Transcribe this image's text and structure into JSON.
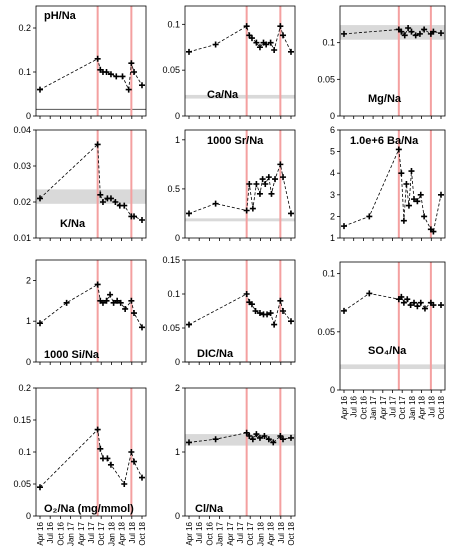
{
  "x_tick_labels": [
    "Apr 16",
    "Jul 16",
    "Oct 16",
    "Jan 17",
    "Apr 17",
    "Jul 17",
    "Oct 17",
    "Jan 18",
    "Apr 18",
    "Jul 18",
    "Oct 18"
  ],
  "event_line_color": "#f4a0a0",
  "band_color": "#d9d9d9",
  "chart_data": [
    {
      "type": "scatter",
      "title": "pH/Na",
      "ylim": [
        0,
        0.25
      ],
      "yticks": [
        0,
        0.1,
        0.2
      ],
      "ytick_labels": [
        "0",
        "0.1",
        "0.2"
      ],
      "x": [
        0,
        6.5,
        6.8,
        7.1,
        7.5,
        8,
        8.6,
        9.3,
        10,
        10.3,
        10.6,
        11.5
      ],
      "y": [
        0.06,
        0.13,
        0.105,
        0.1,
        0.1,
        0.095,
        0.09,
        0.09,
        0.06,
        0.12,
        0.1,
        0.07
      ],
      "hline": 0.015,
      "band": null,
      "events": [
        6.5,
        10.3
      ]
    },
    {
      "type": "scatter",
      "title": "Ca/Na",
      "ylim": [
        0,
        0.12
      ],
      "yticks": [
        0,
        0.05,
        0.1
      ],
      "ytick_labels": [
        "0",
        "0.05",
        "0.1"
      ],
      "x": [
        0,
        3,
        6.5,
        6.8,
        7.1,
        7.6,
        8,
        8.4,
        8.7,
        9.2,
        9.6,
        10.3,
        10.6,
        11.5
      ],
      "y": [
        0.07,
        0.078,
        0.098,
        0.088,
        0.085,
        0.08,
        0.075,
        0.08,
        0.078,
        0.08,
        0.072,
        0.098,
        0.088,
        0.07
      ],
      "hline": null,
      "band": [
        0.019,
        0.023
      ],
      "events": [
        6.5,
        10.3
      ]
    },
    {
      "type": "scatter",
      "title": "Mg/Na",
      "ylim": [
        0,
        0.15
      ],
      "yticks": [
        0,
        0.05,
        0.1
      ],
      "ytick_labels": [
        "0",
        "0.05",
        "0.1"
      ],
      "x": [
        0,
        6.5,
        6.8,
        7.2,
        7.6,
        8,
        8.5,
        9,
        9.5,
        10.3,
        10.6,
        11.5
      ],
      "y": [
        0.112,
        0.118,
        0.115,
        0.11,
        0.12,
        0.115,
        0.11,
        0.112,
        0.118,
        0.112,
        0.115,
        0.113
      ],
      "hline": null,
      "band": [
        0.104,
        0.124
      ],
      "events": [
        6.5,
        10.3
      ]
    },
    {
      "type": "scatter",
      "title": "K/Na",
      "ylim": [
        0.01,
        0.04
      ],
      "yticks": [
        0.01,
        0.02,
        0.03,
        0.04
      ],
      "ytick_labels": [
        "0.01",
        "0.02",
        "0.03",
        "0.04"
      ],
      "x": [
        0,
        6.5,
        6.8,
        7.1,
        7.6,
        8,
        8.5,
        9,
        9.5,
        10.3,
        10.6,
        11.5
      ],
      "y": [
        0.021,
        0.036,
        0.022,
        0.02,
        0.021,
        0.021,
        0.02,
        0.019,
        0.019,
        0.016,
        0.016,
        0.015
      ],
      "hline": null,
      "band": [
        0.0195,
        0.0235
      ],
      "events": [
        6.5,
        10.3
      ]
    },
    {
      "type": "scatter",
      "title": "1000 Sr/Na",
      "ylim": [
        0,
        1.1
      ],
      "yticks": [
        0,
        0.5,
        1
      ],
      "ytick_labels": [
        "0",
        "0.5",
        "1"
      ],
      "x": [
        0,
        3,
        6.5,
        6.8,
        7.2,
        7.6,
        8,
        8.3,
        8.6,
        9,
        9.3,
        9.7,
        10.3,
        10.6,
        11.5
      ],
      "y": [
        0.25,
        0.35,
        0.28,
        0.55,
        0.3,
        0.55,
        0.45,
        0.6,
        0.55,
        0.62,
        0.45,
        0.6,
        0.75,
        0.62,
        0.25
      ],
      "hline": null,
      "band": [
        0.17,
        0.2
      ],
      "events": [
        6.5,
        10.3
      ]
    },
    {
      "type": "scatter",
      "title": "1.0e+6 Ba/Na",
      "ylim": [
        1,
        6
      ],
      "yticks": [
        1,
        2,
        3,
        4,
        5,
        6
      ],
      "ytick_labels": [
        "1",
        "2",
        "3",
        "4",
        "5",
        "6"
      ],
      "x": [
        0,
        3,
        6.5,
        6.8,
        7.1,
        7.4,
        7.7,
        8,
        8.3,
        8.7,
        9.1,
        9.5,
        10.3,
        10.6,
        11.5
      ],
      "y": [
        1.55,
        2,
        5.1,
        4,
        1.8,
        3.5,
        2.5,
        4.1,
        2.8,
        2.7,
        3,
        2,
        1.4,
        1.3,
        3
      ],
      "hline": null,
      "band": null,
      "events": [
        6.5,
        10.3
      ]
    },
    {
      "type": "scatter",
      "title": "1000 Si/Na",
      "ylim": [
        0,
        2.5
      ],
      "yticks": [
        0,
        1,
        2
      ],
      "ytick_labels": [
        "0",
        "1",
        "2"
      ],
      "x": [
        0,
        3,
        6.5,
        6.8,
        7.1,
        7.5,
        7.9,
        8.3,
        8.7,
        9.1,
        9.6,
        10.3,
        10.6,
        11.5
      ],
      "y": [
        0.95,
        1.45,
        1.9,
        1.5,
        1.45,
        1.5,
        1.65,
        1.45,
        1.5,
        1.45,
        1.3,
        1.5,
        1.2,
        0.85
      ],
      "hline": null,
      "band": null,
      "events": [
        6.5,
        10.3
      ]
    },
    {
      "type": "scatter",
      "title": "DIC/Na",
      "ylim": [
        0,
        0.15
      ],
      "yticks": [
        0,
        0.05,
        0.1,
        0.15
      ],
      "ytick_labels": [
        "0",
        "0.05",
        "0.1",
        "0.15"
      ],
      "x": [
        0,
        6.5,
        6.8,
        7.1,
        7.5,
        8,
        8.4,
        8.8,
        9.2,
        9.6,
        10.3,
        10.6,
        11.5
      ],
      "y": [
        0.055,
        0.1,
        0.088,
        0.085,
        0.075,
        0.072,
        0.07,
        0.07,
        0.072,
        0.055,
        0.09,
        0.075,
        0.06
      ],
      "hline": 0,
      "band": null,
      "events": [
        6.5,
        10.3
      ]
    },
    {
      "type": "scatter",
      "title": "SO₄/Na",
      "ylim": [
        0,
        0.11
      ],
      "yticks": [
        0,
        0.05,
        0.1
      ],
      "ytick_labels": [
        "0",
        "0.05",
        "0.1"
      ],
      "x": [
        0,
        3,
        6.5,
        6.8,
        7.1,
        7.5,
        7.9,
        8.3,
        8.7,
        9.1,
        9.6,
        10.3,
        10.6,
        11.5
      ],
      "y": [
        0.068,
        0.083,
        0.078,
        0.08,
        0.075,
        0.078,
        0.073,
        0.075,
        0.072,
        0.075,
        0.07,
        0.075,
        0.073,
        0.073
      ],
      "hline": null,
      "band": [
        0.018,
        0.022
      ],
      "events": [
        6.5,
        10.3
      ]
    },
    {
      "type": "scatter",
      "title": "O₂/Na (mg/mmol)",
      "ylim": [
        0,
        0.2
      ],
      "yticks": [
        0,
        0.05,
        0.1,
        0.15,
        0.2
      ],
      "ytick_labels": [
        "0",
        "0.05",
        "0.1",
        "0.15",
        "0.2"
      ],
      "x": [
        0,
        6.5,
        6.8,
        7.1,
        7.6,
        8,
        9.5,
        10.3,
        10.6,
        11.5
      ],
      "y": [
        0.045,
        0.135,
        0.105,
        0.09,
        0.09,
        0.08,
        0.05,
        0.1,
        0.085,
        0.06
      ],
      "hline": null,
      "band": null,
      "events": [
        6.5,
        10.3
      ]
    },
    {
      "type": "scatter",
      "title": "Cl/Na",
      "ylim": [
        0,
        2
      ],
      "yticks": [
        0,
        1,
        2
      ],
      "ytick_labels": [
        "0",
        "1",
        "2"
      ],
      "x": [
        0,
        3,
        6.5,
        6.8,
        7.2,
        7.6,
        8,
        8.5,
        9,
        9.5,
        10.3,
        10.6,
        11.5
      ],
      "y": [
        1.15,
        1.2,
        1.3,
        1.25,
        1.2,
        1.28,
        1.22,
        1.25,
        1.2,
        1.15,
        1.25,
        1.2,
        1.22
      ],
      "hline": null,
      "band": [
        1.1,
        1.28
      ],
      "events": [
        6.5,
        10.3
      ]
    }
  ]
}
